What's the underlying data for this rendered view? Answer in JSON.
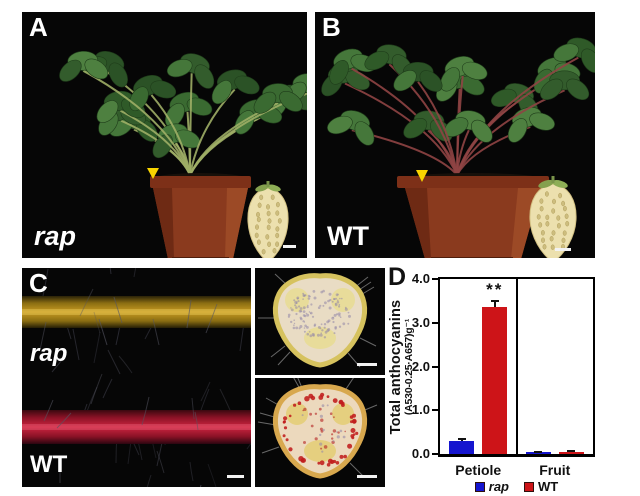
{
  "panel_a": {
    "label": "A",
    "genotype": "rap"
  },
  "panel_b": {
    "label": "B",
    "genotype": "WT"
  },
  "panel_c": {
    "label": "C",
    "top_genotype": "rap",
    "bottom_genotype": "WT"
  },
  "panel_d": {
    "label": "D"
  },
  "chart_data": {
    "type": "bar",
    "title": "",
    "ylabel": "Total anthocyanins",
    "ylabel_sub": "(A530-0.25·A657)g⁻¹",
    "categories": [
      "Petiole",
      "Fruit"
    ],
    "series": [
      {
        "name": "rap",
        "italic": true,
        "color": "#1515cf",
        "values": [
          0.3,
          0.04
        ],
        "errors": [
          0.04,
          0.01
        ]
      },
      {
        "name": "WT",
        "italic": false,
        "color": "#cd1418",
        "values": [
          3.35,
          0.05
        ],
        "errors": [
          0.14,
          0.02
        ]
      }
    ],
    "ylim": [
      0,
      4.0
    ],
    "yticks": [
      0.0,
      1.0,
      2.0,
      3.0,
      4.0
    ],
    "grid": false,
    "legend_position": "bottom",
    "annotations": [
      {
        "text": "**",
        "category": "Petiole",
        "series": "WT"
      }
    ]
  },
  "colors": {
    "bar_rap": "#1515cf",
    "bar_wt": "#cd1418",
    "rap_petiole_mid": "#c89b22",
    "rap_petiole_edge": "#5e4a0e",
    "wt_petiole_mid": "#cc2440",
    "wt_petiole_edge": "#4a0a14",
    "pot": "#8a3a1e",
    "pot_dark": "#60250f",
    "leaf": "#3a6a31",
    "rap_stem": "#9fae66",
    "wt_stem": "#8f4444",
    "fruit": "#ece0ae",
    "marker_yellow": "#f8d400"
  }
}
